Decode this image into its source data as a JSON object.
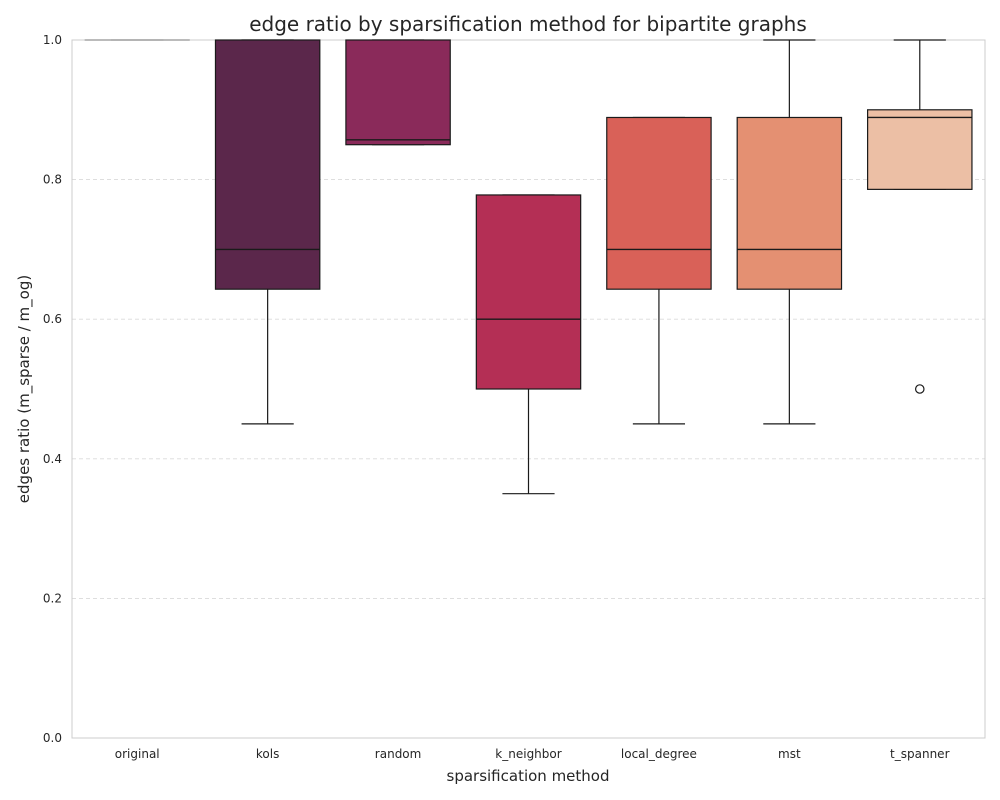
{
  "chart_data": {
    "type": "box",
    "title": "edge ratio by sparsification method for bipartite graphs",
    "xlabel": "sparsification method",
    "ylabel": "edges ratio (m_sparse / m_og)",
    "ylim": [
      0,
      1
    ],
    "yticks": [
      "0.0",
      "0.2",
      "0.4",
      "0.6",
      "0.8",
      "1.0"
    ],
    "grid": "horizontal dashed",
    "categories": [
      "original",
      "kols",
      "random",
      "k_neighbor",
      "local_degree",
      "mst",
      "t_spanner"
    ],
    "boxes": [
      {
        "name": "original",
        "whisker_low": 1.0,
        "q1": 1.0,
        "median": 1.0,
        "q3": 1.0,
        "whisker_high": 1.0,
        "outliers": [],
        "color": "#cfcfcf"
      },
      {
        "name": "kols",
        "whisker_low": 0.45,
        "q1": 0.643,
        "median": 0.7,
        "q3": 1.0,
        "whisker_high": 1.0,
        "outliers": [],
        "color": "#5b274b"
      },
      {
        "name": "random",
        "whisker_low": 0.85,
        "q1": 0.85,
        "median": 0.857,
        "q3": 1.0,
        "whisker_high": 1.0,
        "outliers": [],
        "color": "#8a2a5a"
      },
      {
        "name": "k_neighbor",
        "whisker_low": 0.35,
        "q1": 0.5,
        "median": 0.6,
        "q3": 0.778,
        "whisker_high": 0.778,
        "outliers": [],
        "color": "#b42f55"
      },
      {
        "name": "local_degree",
        "whisker_low": 0.45,
        "q1": 0.643,
        "median": 0.7,
        "q3": 0.889,
        "whisker_high": 0.889,
        "outliers": [],
        "color": "#d96158"
      },
      {
        "name": "mst",
        "whisker_low": 0.45,
        "q1": 0.643,
        "median": 0.7,
        "q3": 0.889,
        "whisker_high": 1.0,
        "outliers": [],
        "color": "#e49072"
      },
      {
        "name": "t_spanner",
        "whisker_low": 0.786,
        "q1": 0.786,
        "median": 0.889,
        "q3": 0.9,
        "whisker_high": 1.0,
        "outliers": [
          0.5
        ],
        "color": "#ecbfa5"
      }
    ]
  }
}
